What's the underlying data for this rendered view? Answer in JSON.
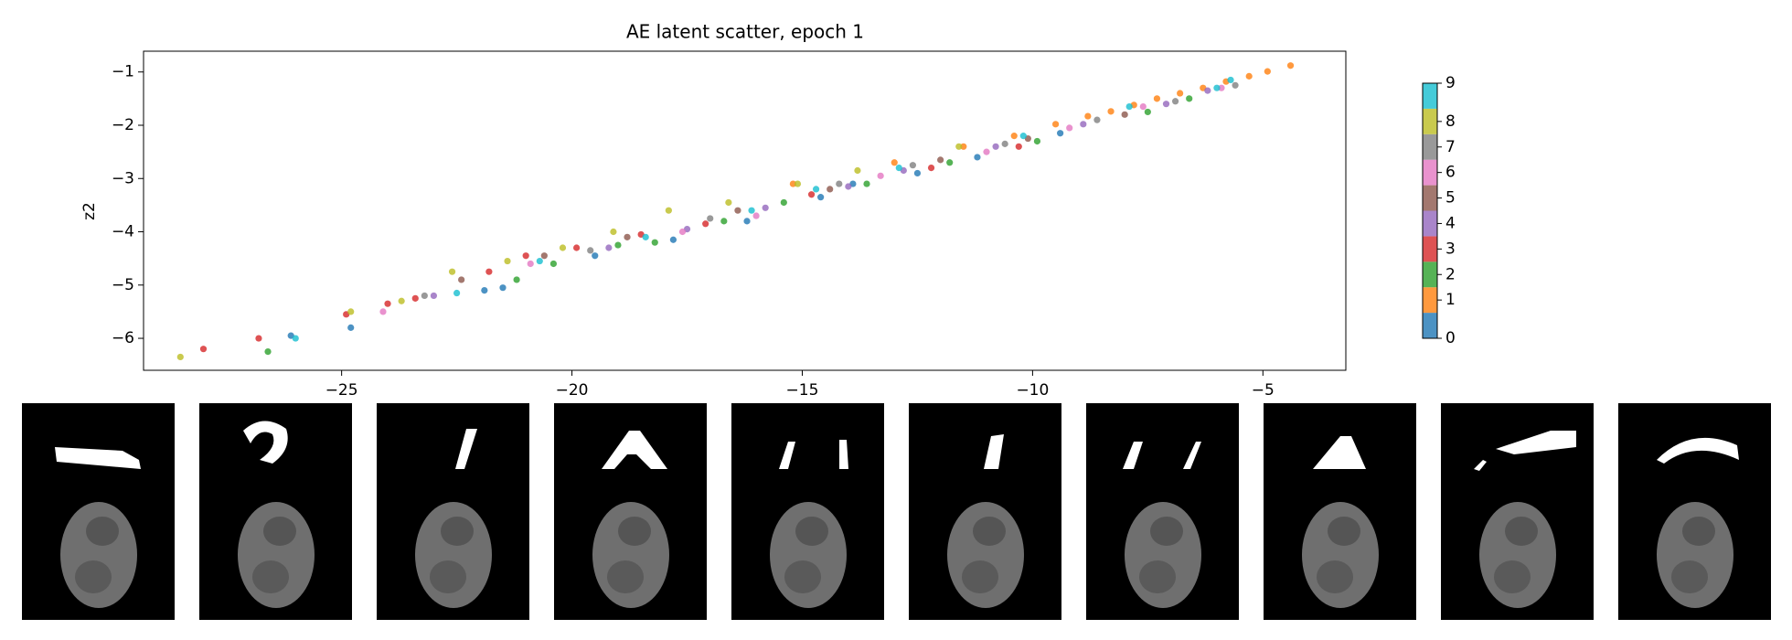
{
  "chart_data": {
    "type": "scatter",
    "title": "AE latent scatter, epoch 1",
    "y_label": "z2",
    "xlim": [
      -29.3,
      -3.2
    ],
    "ylim": [
      -6.6,
      -0.61
    ],
    "xticks": [
      {
        "value": -25,
        "label": "−25"
      },
      {
        "value": -20,
        "label": "−20"
      },
      {
        "value": -15,
        "label": "−15"
      },
      {
        "value": -10,
        "label": "−10"
      },
      {
        "value": -5,
        "label": "−5"
      }
    ],
    "yticks": [
      {
        "value": -6,
        "label": "−6"
      },
      {
        "value": -5,
        "label": "−5"
      },
      {
        "value": -4,
        "label": "−4"
      },
      {
        "value": -3,
        "label": "−3"
      },
      {
        "value": -2,
        "label": "−2"
      },
      {
        "value": -1,
        "label": "−1"
      }
    ],
    "legend": "colorbar",
    "series": [
      {
        "name": "0",
        "color": "#1f77b4",
        "x": [
          -26.1,
          -24.8,
          -21.9,
          -21.5,
          -19.5,
          -17.8,
          -16.2,
          -14.6,
          -13.9,
          -12.5,
          -11.2,
          -9.4
        ],
        "y": [
          -5.95,
          -5.8,
          -5.1,
          -5.05,
          -4.45,
          -4.15,
          -3.8,
          -3.35,
          -3.1,
          -2.9,
          -2.6,
          -2.15
        ]
      },
      {
        "name": "1",
        "color": "#ff7f0e",
        "x": [
          -4.4,
          -4.9,
          -5.3,
          -5.8,
          -6.3,
          -6.8,
          -7.3,
          -7.8,
          -8.3,
          -8.8,
          -9.5,
          -10.4,
          -11.5,
          -13,
          -15.2
        ],
        "y": [
          -0.88,
          -0.99,
          -1.08,
          -1.18,
          -1.3,
          -1.4,
          -1.5,
          -1.62,
          -1.74,
          -1.83,
          -1.98,
          -2.2,
          -2.4,
          -2.7,
          -3.1
        ]
      },
      {
        "name": "2",
        "color": "#2ca02c",
        "x": [
          -26.6,
          -21.2,
          -20.4,
          -19,
          -18.2,
          -16.7,
          -15.4,
          -13.6,
          -11.8,
          -9.9,
          -7.5,
          -6.6
        ],
        "y": [
          -6.25,
          -4.9,
          -4.6,
          -4.25,
          -4.2,
          -3.8,
          -3.45,
          -3.1,
          -2.7,
          -2.3,
          -1.75,
          -1.5
        ]
      },
      {
        "name": "3",
        "color": "#d62728",
        "x": [
          -28,
          -26.8,
          -24.9,
          -24,
          -23.4,
          -21.8,
          -21,
          -19.9,
          -18.5,
          -17.1,
          -14.8,
          -12.2,
          -10.3
        ],
        "y": [
          -6.2,
          -6.0,
          -5.55,
          -5.35,
          -5.25,
          -4.75,
          -4.45,
          -4.3,
          -4.05,
          -3.85,
          -3.3,
          -2.8,
          -2.4
        ]
      },
      {
        "name": "4",
        "color": "#9467bd",
        "x": [
          -23,
          -19.2,
          -17.5,
          -15.8,
          -14,
          -12.8,
          -10.8,
          -8.9,
          -7.1,
          -6.2
        ],
        "y": [
          -5.2,
          -4.3,
          -3.95,
          -3.55,
          -3.15,
          -2.85,
          -2.4,
          -1.98,
          -1.6,
          -1.35
        ]
      },
      {
        "name": "5",
        "color": "#8c564b",
        "x": [
          -22.4,
          -20.6,
          -18.8,
          -16.4,
          -14.4,
          -12,
          -10.1,
          -8
        ],
        "y": [
          -4.9,
          -4.45,
          -4.1,
          -3.6,
          -3.2,
          -2.65,
          -2.25,
          -1.8
        ]
      },
      {
        "name": "6",
        "color": "#e377c2",
        "x": [
          -24.1,
          -20.9,
          -17.6,
          -16,
          -13.3,
          -11,
          -9.2,
          -7.6,
          -5.9
        ],
        "y": [
          -5.5,
          -4.6,
          -4.0,
          -3.7,
          -2.95,
          -2.5,
          -2.05,
          -1.65,
          -1.3
        ]
      },
      {
        "name": "7",
        "color": "#7f7f7f",
        "x": [
          -23.2,
          -19.6,
          -17,
          -14.2,
          -12.6,
          -10.6,
          -8.6,
          -6.9,
          -5.6
        ],
        "y": [
          -5.2,
          -4.35,
          -3.75,
          -3.1,
          -2.75,
          -2.35,
          -1.9,
          -1.55,
          -1.25
        ]
      },
      {
        "name": "8",
        "color": "#bcbd22",
        "x": [
          -28.5,
          -24.8,
          -23.7,
          -22.6,
          -21.4,
          -20.2,
          -19.1,
          -17.9,
          -16.6,
          -15.1,
          -13.8,
          -11.6
        ],
        "y": [
          -6.35,
          -5.5,
          -5.3,
          -4.75,
          -4.55,
          -4.3,
          -4.0,
          -3.6,
          -3.45,
          -3.1,
          -2.85,
          -2.4
        ]
      },
      {
        "name": "9",
        "color": "#17becf",
        "x": [
          -26,
          -22.5,
          -20.7,
          -18.4,
          -16.1,
          -14.7,
          -12.9,
          -10.2,
          -7.9,
          -6,
          -5.7
        ],
        "y": [
          -6.0,
          -5.15,
          -4.55,
          -4.1,
          -3.6,
          -3.2,
          -2.8,
          -2.2,
          -1.65,
          -1.3,
          -1.15
        ]
      }
    ]
  }
}
